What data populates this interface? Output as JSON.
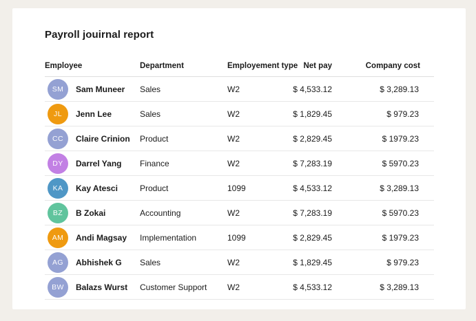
{
  "page": {
    "background_color": "#f2efea",
    "card_color": "#ffffff"
  },
  "report": {
    "title": "Payroll jouirnal report",
    "columns": {
      "employee": "Employee",
      "department": "Department",
      "employment_type": "Employement type",
      "net_pay": "Net pay",
      "company_cost": "Company cost"
    },
    "avatar_palette": {
      "periwinkle": "#94a1d3",
      "orange": "#ef9a10",
      "purple": "#c280e4",
      "blue": "#4f97c6",
      "green": "#60c49d"
    },
    "rows": [
      {
        "initials": "SM",
        "avatar_color": "#94a1d3",
        "name": "Sam Muneer",
        "department": "Sales",
        "employment_type": "W2",
        "net_pay": "$ 4,533.12",
        "company_cost": "$ 3,289.13"
      },
      {
        "initials": "JL",
        "avatar_color": "#ef9a10",
        "name": "Jenn Lee",
        "department": "Sales",
        "employment_type": "W2",
        "net_pay": "$ 1,829.45",
        "company_cost": "$ 979.23"
      },
      {
        "initials": "CC",
        "avatar_color": "#94a1d3",
        "name": "Claire Crinion",
        "department": "Product",
        "employment_type": "W2",
        "net_pay": "$ 2,829.45",
        "company_cost": "$ 1979.23"
      },
      {
        "initials": "DY",
        "avatar_color": "#c280e4",
        "name": "Darrel Yang",
        "department": "Finance",
        "employment_type": "W2",
        "net_pay": "$ 7,283.19",
        "company_cost": "$ 5970.23"
      },
      {
        "initials": "KA",
        "avatar_color": "#4f97c6",
        "name": "Kay Atesci",
        "department": "Product",
        "employment_type": "1099",
        "net_pay": "$ 4,533.12",
        "company_cost": "$ 3,289.13"
      },
      {
        "initials": "BZ",
        "avatar_color": "#60c49d",
        "name": "B Zokai",
        "department": "Accounting",
        "employment_type": "W2",
        "net_pay": "$ 7,283.19",
        "company_cost": "$ 5970.23"
      },
      {
        "initials": "AM",
        "avatar_color": "#ef9a10",
        "name": "Andi Magsay",
        "department": "Implementation",
        "employment_type": "1099",
        "net_pay": "$ 2,829.45",
        "company_cost": "$ 1979.23"
      },
      {
        "initials": "AG",
        "avatar_color": "#94a1d3",
        "name": "Abhishek G",
        "department": "Sales",
        "employment_type": "W2",
        "net_pay": "$ 1,829.45",
        "company_cost": "$ 979.23"
      },
      {
        "initials": "BW",
        "avatar_color": "#94a1d3",
        "name": "Balazs Wurst",
        "department": "Customer Support",
        "employment_type": "W2",
        "net_pay": "$ 4,533.12",
        "company_cost": "$ 3,289.13"
      }
    ]
  }
}
